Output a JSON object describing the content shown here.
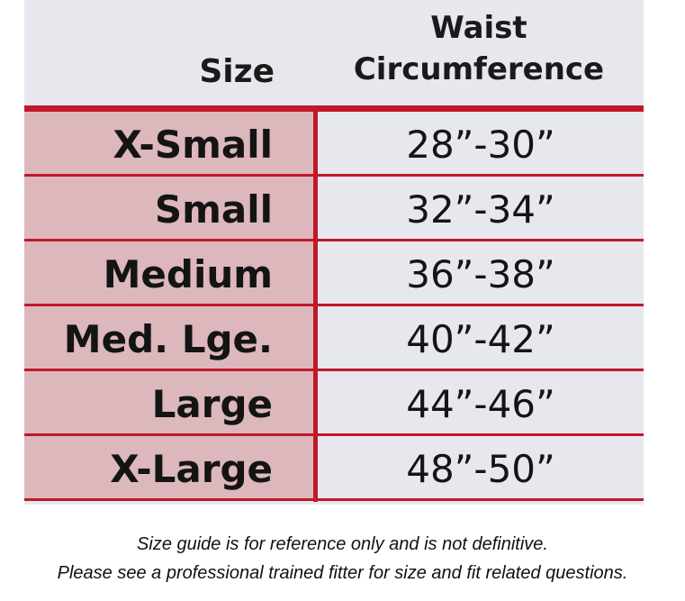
{
  "header": {
    "size": "Size",
    "waist_line1": "Waist",
    "waist_line2": "Circumference"
  },
  "rows": [
    {
      "size": "X-Small",
      "waist": "28”-30”"
    },
    {
      "size": "Small",
      "waist": "32”-34”"
    },
    {
      "size": "Medium",
      "waist": "36”-38”"
    },
    {
      "size": "Med. Lge.",
      "waist": "40”-42”"
    },
    {
      "size": "Large",
      "waist": "44”-46”"
    },
    {
      "size": "X-Large",
      "waist": "48”-50”"
    }
  ],
  "footer": {
    "line1": "Size guide is for reference only and is not definitive.",
    "line2": "Please see a professional trained fitter for size and fit related questions."
  },
  "colors": {
    "accent_red": "#c0182a",
    "size_column_bg": "#dcb7bc",
    "panel_bg": "#e6e8ee"
  }
}
